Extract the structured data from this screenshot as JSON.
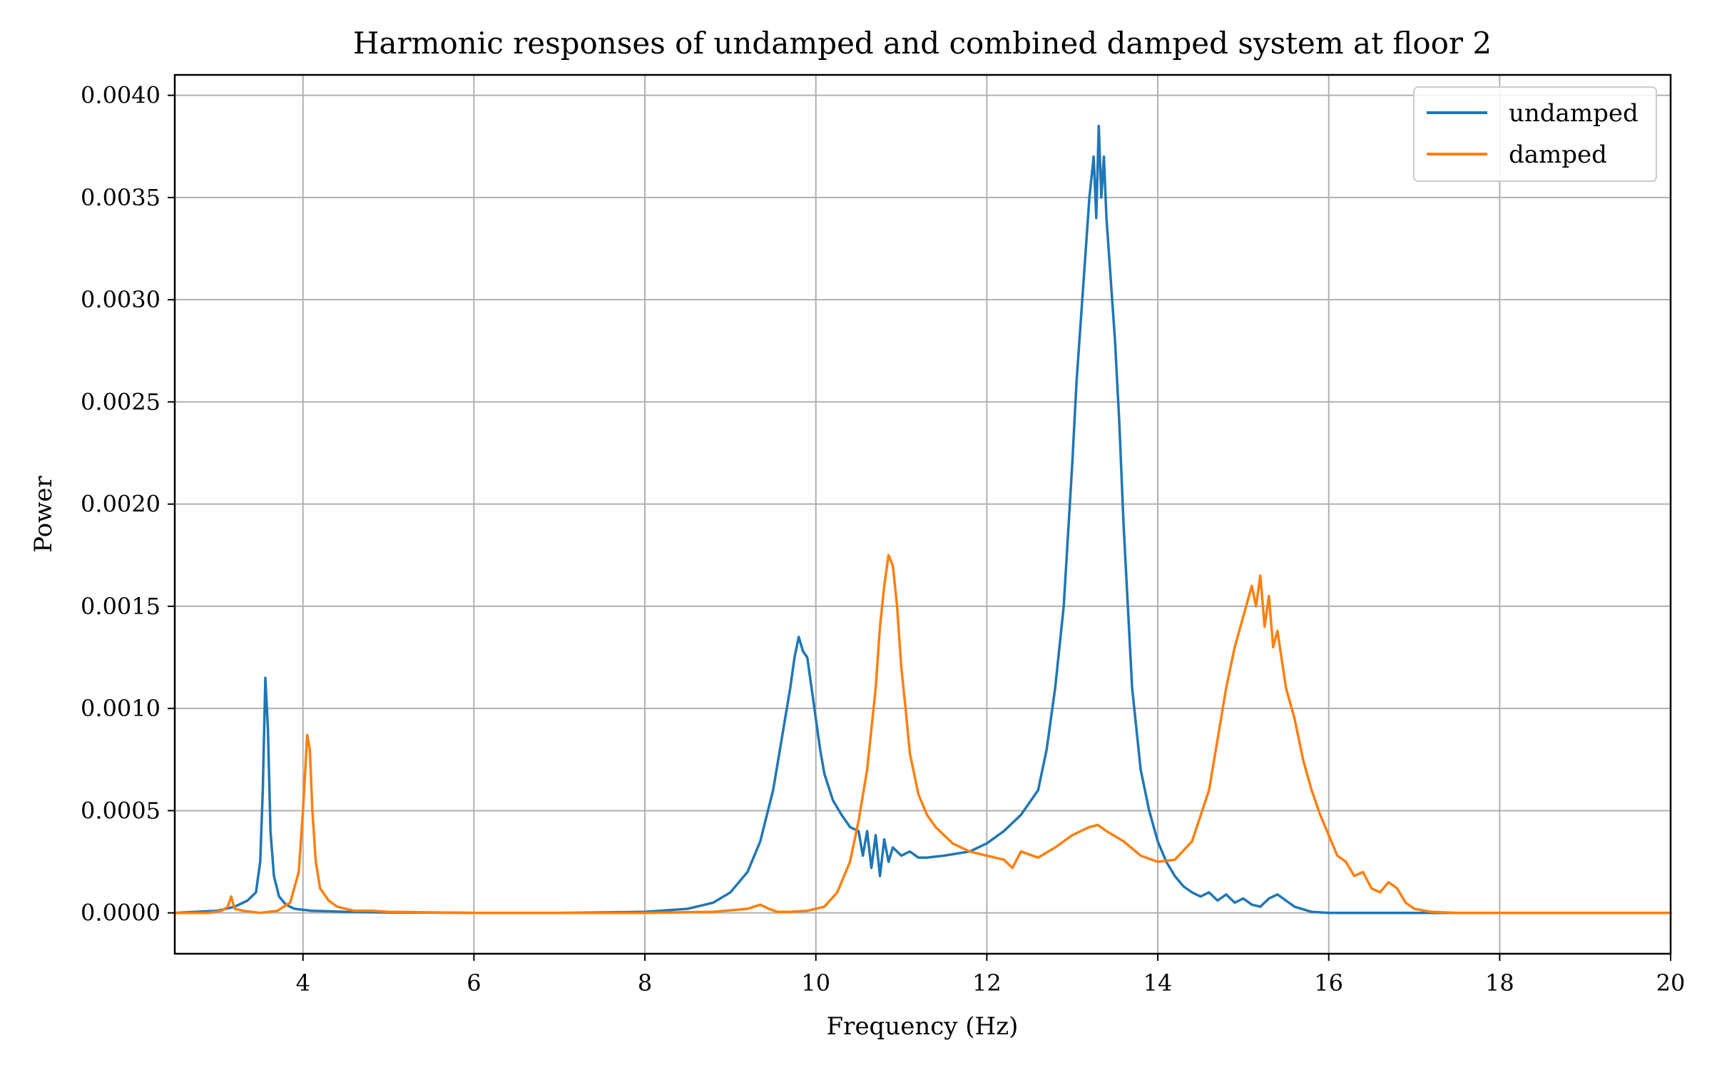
{
  "chart_data": {
    "type": "line",
    "title": "Harmonic responses of undamped and combined damped system at floor 2",
    "xlabel": "Frequency (Hz)",
    "ylabel": "Power",
    "xlim": [
      2.5,
      20
    ],
    "ylim": [
      -0.0002,
      0.0041
    ],
    "grid": true,
    "legend_position": "top-right",
    "x_ticks": [
      4,
      6,
      8,
      10,
      12,
      14,
      16,
      18,
      20
    ],
    "x_tick_labels": [
      "4",
      "6",
      "8",
      "10",
      "12",
      "14",
      "16",
      "18",
      "20"
    ],
    "y_ticks": [
      0.0,
      0.0005,
      0.001,
      0.0015,
      0.002,
      0.0025,
      0.003,
      0.0035,
      0.004
    ],
    "y_tick_labels": [
      "0.0000",
      "0.0005",
      "0.0010",
      "0.0015",
      "0.0020",
      "0.0025",
      "0.0030",
      "0.0035",
      "0.0040"
    ],
    "series": [
      {
        "name": "undamped",
        "color": "#1f77b4",
        "x": [
          2.5,
          3.0,
          3.2,
          3.35,
          3.45,
          3.5,
          3.53,
          3.56,
          3.59,
          3.62,
          3.66,
          3.72,
          3.8,
          3.9,
          4.1,
          4.5,
          5.0,
          6.0,
          7.0,
          8.0,
          8.5,
          8.8,
          9.0,
          9.2,
          9.35,
          9.5,
          9.6,
          9.7,
          9.75,
          9.8,
          9.85,
          9.9,
          9.95,
          10.0,
          10.05,
          10.1,
          10.2,
          10.3,
          10.4,
          10.5,
          10.55,
          10.6,
          10.65,
          10.7,
          10.75,
          10.8,
          10.85,
          10.9,
          11.0,
          11.1,
          11.2,
          11.3,
          11.5,
          11.8,
          12.0,
          12.2,
          12.4,
          12.6,
          12.7,
          12.8,
          12.9,
          13.0,
          13.05,
          13.1,
          13.15,
          13.2,
          13.25,
          13.28,
          13.31,
          13.34,
          13.37,
          13.4,
          13.45,
          13.5,
          13.55,
          13.6,
          13.65,
          13.7,
          13.75,
          13.8,
          13.9,
          14.0,
          14.1,
          14.2,
          14.3,
          14.4,
          14.5,
          14.6,
          14.7,
          14.8,
          14.9,
          15.0,
          15.1,
          15.2,
          15.3,
          15.4,
          15.5,
          15.6,
          15.8,
          16.0,
          16.5,
          17.0,
          18.0,
          19.0,
          20.0
        ],
        "values": [
          0.0,
          1e-05,
          3e-05,
          6e-05,
          0.0001,
          0.00025,
          0.0006,
          0.00115,
          0.0009,
          0.0004,
          0.00018,
          8e-05,
          4e-05,
          2e-05,
          1e-05,
          5e-06,
          2e-06,
          0.0,
          0.0,
          5e-06,
          2e-05,
          5e-05,
          0.0001,
          0.0002,
          0.00035,
          0.0006,
          0.00085,
          0.0011,
          0.00125,
          0.00135,
          0.00128,
          0.00125,
          0.0011,
          0.00095,
          0.0008,
          0.00068,
          0.00055,
          0.00048,
          0.00042,
          0.0004,
          0.00028,
          0.0004,
          0.00022,
          0.00038,
          0.00018,
          0.00036,
          0.00025,
          0.00032,
          0.00028,
          0.0003,
          0.00027,
          0.00027,
          0.00028,
          0.0003,
          0.00034,
          0.0004,
          0.00048,
          0.0006,
          0.0008,
          0.0011,
          0.0015,
          0.0022,
          0.0026,
          0.0029,
          0.0032,
          0.0035,
          0.0037,
          0.0034,
          0.00385,
          0.0035,
          0.0037,
          0.0034,
          0.0031,
          0.0028,
          0.0024,
          0.0019,
          0.0015,
          0.0011,
          0.0009,
          0.0007,
          0.0005,
          0.00035,
          0.00025,
          0.00018,
          0.00013,
          0.0001,
          8e-05,
          0.0001,
          6e-05,
          9e-05,
          5e-05,
          7e-05,
          4e-05,
          3e-05,
          7e-05,
          9e-05,
          6e-05,
          3e-05,
          5e-06,
          0.0,
          0.0,
          0.0,
          0.0,
          0.0,
          0.0
        ]
      },
      {
        "name": "damped",
        "color": "#ff7f0e",
        "x": [
          2.5,
          2.9,
          3.05,
          3.12,
          3.16,
          3.2,
          3.3,
          3.5,
          3.7,
          3.85,
          3.95,
          4.0,
          4.05,
          4.08,
          4.11,
          4.15,
          4.2,
          4.3,
          4.4,
          4.6,
          4.8,
          5.0,
          6.0,
          7.0,
          8.0,
          8.8,
          9.2,
          9.35,
          9.45,
          9.55,
          9.7,
          9.9,
          10.1,
          10.25,
          10.4,
          10.5,
          10.6,
          10.7,
          10.75,
          10.8,
          10.85,
          10.9,
          10.95,
          11.0,
          11.05,
          11.1,
          11.2,
          11.3,
          11.4,
          11.5,
          11.6,
          11.8,
          12.0,
          12.2,
          12.3,
          12.4,
          12.6,
          12.8,
          13.0,
          13.2,
          13.3,
          13.4,
          13.6,
          13.8,
          14.0,
          14.2,
          14.4,
          14.6,
          14.8,
          14.9,
          15.0,
          15.1,
          15.15,
          15.2,
          15.25,
          15.3,
          15.35,
          15.4,
          15.5,
          15.6,
          15.7,
          15.8,
          15.9,
          16.0,
          16.1,
          16.2,
          16.3,
          16.4,
          16.5,
          16.6,
          16.7,
          16.8,
          16.9,
          17.0,
          17.2,
          17.5,
          18.0,
          19.0,
          20.0
        ],
        "values": [
          0.0,
          0.0,
          1e-05,
          3e-05,
          8e-05,
          2e-05,
          1e-05,
          0.0,
          1e-05,
          5e-05,
          0.0002,
          0.0005,
          0.00087,
          0.0008,
          0.0005,
          0.00025,
          0.00012,
          6e-05,
          3e-05,
          1e-05,
          1e-05,
          5e-06,
          0.0,
          0.0,
          0.0,
          5e-06,
          2e-05,
          4e-05,
          2e-05,
          5e-06,
          5e-06,
          1e-05,
          3e-05,
          0.0001,
          0.00025,
          0.00045,
          0.0007,
          0.0011,
          0.0014,
          0.0016,
          0.00175,
          0.0017,
          0.0015,
          0.0012,
          0.001,
          0.00078,
          0.00058,
          0.00048,
          0.00042,
          0.00038,
          0.00034,
          0.0003,
          0.00028,
          0.00026,
          0.00022,
          0.0003,
          0.00027,
          0.00032,
          0.00038,
          0.00042,
          0.00043,
          0.0004,
          0.00035,
          0.00028,
          0.00025,
          0.00026,
          0.00035,
          0.0006,
          0.0011,
          0.0013,
          0.00145,
          0.0016,
          0.0015,
          0.00165,
          0.0014,
          0.00155,
          0.0013,
          0.00138,
          0.0011,
          0.00095,
          0.00075,
          0.0006,
          0.00048,
          0.00038,
          0.00028,
          0.00025,
          0.00018,
          0.0002,
          0.00012,
          0.0001,
          0.00015,
          0.00012,
          5e-05,
          2e-05,
          5e-06,
          0.0,
          0.0,
          0.0,
          0.0
        ]
      }
    ]
  }
}
